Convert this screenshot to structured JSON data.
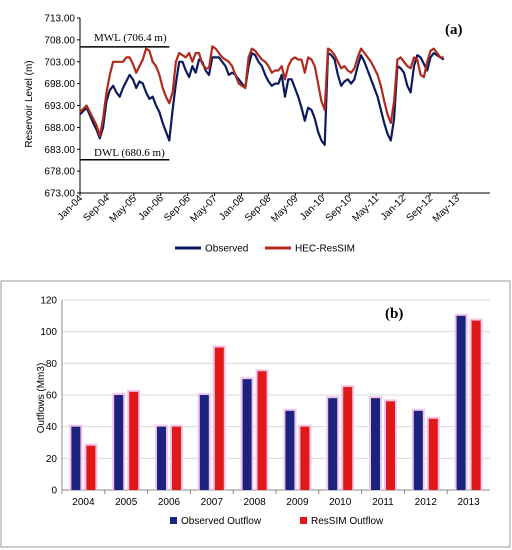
{
  "chart_data": [
    {
      "type": "line",
      "panel_label": "(a)",
      "ylabel": "Reservoir Level (m)",
      "ylim": [
        673,
        713
      ],
      "yticks": [
        "673.00",
        "678.00",
        "683.00",
        "688.00",
        "693.00",
        "698.00",
        "703.00",
        "708.00",
        "713.00"
      ],
      "xticks": [
        "Jan-04",
        "Sep-04",
        "May-05",
        "Jan-06",
        "Sep-06",
        "May-07",
        "Jan-08",
        "Sep-08",
        "May-09",
        "Jan-10",
        "Sep-10",
        "May-11",
        "Jan-12",
        "Sep-12",
        "May-13"
      ],
      "xlim": [
        0,
        124
      ],
      "annotations": [
        {
          "text": "MWL (706.4 m)",
          "x_from": 0,
          "x_to": 24,
          "y": 706.4
        },
        {
          "text": "DWL (680.6 m)",
          "x_from": 0,
          "x_to": 24,
          "y": 680.6
        }
      ],
      "legend_position": "bottom-center",
      "series": [
        {
          "name": "Observed",
          "color": "#0d1a5e",
          "points": [
            [
              0,
              691
            ],
            [
              2,
              692.5
            ],
            [
              4,
              689
            ],
            [
              5,
              687.5
            ],
            [
              6,
              685.5
            ],
            [
              7,
              688
            ],
            [
              8,
              694
            ],
            [
              9,
              696.5
            ],
            [
              10,
              697.5
            ],
            [
              11,
              696
            ],
            [
              12,
              695
            ],
            [
              13,
              697
            ],
            [
              14,
              698.5
            ],
            [
              15,
              700
            ],
            [
              16,
              699
            ],
            [
              17,
              697
            ],
            [
              18,
              698.5
            ],
            [
              19,
              698
            ],
            [
              20,
              696
            ],
            [
              21,
              694.5
            ],
            [
              22,
              695
            ],
            [
              23,
              693
            ],
            [
              24,
              691.5
            ],
            [
              25,
              689
            ],
            [
              26,
              687
            ],
            [
              27,
              685
            ],
            [
              28,
              692
            ],
            [
              29,
              698
            ],
            [
              30,
              703
            ],
            [
              31,
              703
            ],
            [
              32,
              701
            ],
            [
              33,
              699.5
            ],
            [
              34,
              702
            ],
            [
              35,
              700.5
            ],
            [
              36,
              703.5
            ],
            [
              37,
              703
            ],
            [
              38,
              701
            ],
            [
              39,
              700
            ],
            [
              40,
              704
            ],
            [
              41,
              704
            ],
            [
              42,
              704
            ],
            [
              43,
              703
            ],
            [
              44,
              702
            ],
            [
              45,
              700
            ],
            [
              46,
              700.5
            ],
            [
              47,
              700
            ],
            [
              48,
              699
            ],
            [
              49,
              698
            ],
            [
              50,
              697
            ],
            [
              51,
              702
            ],
            [
              52,
              705
            ],
            [
              53,
              704.5
            ],
            [
              54,
              703
            ],
            [
              55,
              702
            ],
            [
              56,
              700
            ],
            [
              57,
              698.5
            ],
            [
              58,
              697.5
            ],
            [
              59,
              698
            ],
            [
              60,
              698
            ],
            [
              61,
              700
            ],
            [
              62,
              695
            ],
            [
              63,
              699
            ],
            [
              64,
              699
            ],
            [
              65,
              697
            ],
            [
              66,
              695
            ],
            [
              67,
              692.5
            ],
            [
              68,
              689.5
            ],
            [
              69,
              692.5
            ],
            [
              70,
              692
            ],
            [
              71,
              690
            ],
            [
              72,
              687
            ],
            [
              73,
              685
            ],
            [
              74,
              684
            ],
            [
              75,
              705
            ],
            [
              76,
              704.5
            ],
            [
              77,
              703.5
            ],
            [
              78,
              700
            ],
            [
              79,
              697.5
            ],
            [
              80,
              698.5
            ],
            [
              81,
              699
            ],
            [
              82,
              698
            ],
            [
              83,
              699
            ],
            [
              84,
              702
            ],
            [
              85,
              704.5
            ],
            [
              86,
              703
            ],
            [
              87,
              701
            ],
            [
              88,
              699
            ],
            [
              89,
              697
            ],
            [
              90,
              695
            ],
            [
              91,
              692
            ],
            [
              92,
              689
            ],
            [
              93,
              686.5
            ],
            [
              94,
              685
            ],
            [
              95,
              690
            ],
            [
              96,
              702
            ],
            [
              97,
              701.5
            ],
            [
              98,
              700.5
            ],
            [
              99,
              697.5
            ],
            [
              100,
              696
            ],
            [
              101,
              702
            ],
            [
              102,
              704.5
            ],
            [
              103,
              704
            ],
            [
              104,
              702.5
            ],
            [
              105,
              701
            ],
            [
              106,
              704
            ],
            [
              107,
              705
            ],
            [
              108,
              704.5
            ],
            [
              109,
              704
            ],
            [
              110,
              703.5
            ]
          ]
        },
        {
          "name": "HEC-ResSIM",
          "color": "#b02a1e",
          "points": [
            [
              0,
              691.5
            ],
            [
              2,
              693
            ],
            [
              4,
              690
            ],
            [
              5,
              688.5
            ],
            [
              6,
              686
            ],
            [
              7,
              690
            ],
            [
              8,
              696
            ],
            [
              9,
              700
            ],
            [
              10,
              703
            ],
            [
              11,
              703
            ],
            [
              12,
              703
            ],
            [
              13,
              703
            ],
            [
              14,
              704
            ],
            [
              15,
              704
            ],
            [
              16,
              702.5
            ],
            [
              17,
              700.5
            ],
            [
              18,
              702
            ],
            [
              19,
              703.5
            ],
            [
              20,
              706
            ],
            [
              21,
              705.5
            ],
            [
              22,
              703
            ],
            [
              23,
              702
            ],
            [
              24,
              700
            ],
            [
              25,
              697
            ],
            [
              26,
              695
            ],
            [
              27,
              693.5
            ],
            [
              28,
              696
            ],
            [
              29,
              703
            ],
            [
              30,
              705
            ],
            [
              31,
              704.5
            ],
            [
              32,
              704
            ],
            [
              33,
              705
            ],
            [
              34,
              703
            ],
            [
              35,
              705
            ],
            [
              36,
              705
            ],
            [
              37,
              702.5
            ],
            [
              38,
              701.5
            ],
            [
              39,
              701.5
            ],
            [
              40,
              706.5
            ],
            [
              41,
              706
            ],
            [
              42,
              705
            ],
            [
              43,
              704
            ],
            [
              44,
              703.5
            ],
            [
              45,
              703
            ],
            [
              46,
              702
            ],
            [
              47,
              700
            ],
            [
              48,
              698
            ],
            [
              49,
              697.5
            ],
            [
              50,
              697
            ],
            [
              51,
              704
            ],
            [
              52,
              706
            ],
            [
              53,
              705.5
            ],
            [
              54,
              704.5
            ],
            [
              55,
              703.5
            ],
            [
              56,
              703
            ],
            [
              57,
              702
            ],
            [
              58,
              700.5
            ],
            [
              59,
              701
            ],
            [
              60,
              701
            ],
            [
              61,
              702
            ],
            [
              62,
              699
            ],
            [
              63,
              702
            ],
            [
              64,
              703.5
            ],
            [
              65,
              704
            ],
            [
              66,
              703.5
            ],
            [
              67,
              703.5
            ],
            [
              68,
              700.5
            ],
            [
              69,
              704
            ],
            [
              70,
              703.5
            ],
            [
              71,
              702
            ],
            [
              72,
              698
            ],
            [
              73,
              694
            ],
            [
              74,
              692
            ],
            [
              75,
              706
            ],
            [
              76,
              705.5
            ],
            [
              77,
              704.5
            ],
            [
              78,
              703
            ],
            [
              79,
              701.5
            ],
            [
              80,
              702
            ],
            [
              81,
              701
            ],
            [
              82,
              700.5
            ],
            [
              83,
              701.5
            ],
            [
              84,
              704
            ],
            [
              85,
              706
            ],
            [
              86,
              705
            ],
            [
              87,
              704
            ],
            [
              88,
              703
            ],
            [
              89,
              701.5
            ],
            [
              90,
              700
            ],
            [
              91,
              697.5
            ],
            [
              92,
              694
            ],
            [
              93,
              691
            ],
            [
              94,
              689
            ],
            [
              95,
              694
            ],
            [
              96,
              703.5
            ],
            [
              97,
              704
            ],
            [
              98,
              703
            ],
            [
              99,
              702
            ],
            [
              100,
              701.5
            ],
            [
              101,
              704
            ],
            [
              102,
              703.5
            ],
            [
              103,
              700
            ],
            [
              104,
              699.5
            ],
            [
              105,
              703
            ],
            [
              106,
              705.5
            ],
            [
              107,
              706
            ],
            [
              108,
              705
            ],
            [
              109,
              704
            ],
            [
              110,
              704
            ]
          ]
        }
      ]
    },
    {
      "type": "bar",
      "panel_label": "(b)",
      "ylabel": "Outflows (Mm3)",
      "ylim": [
        0,
        120
      ],
      "yticks": [
        "0",
        "20",
        "40",
        "60",
        "80",
        "100",
        "120"
      ],
      "categories": [
        "2004",
        "2005",
        "2006",
        "2007",
        "2008",
        "2009",
        "2010",
        "2011",
        "2012",
        "2013"
      ],
      "legend_position": "bottom-center",
      "series": [
        {
          "name": "Observed Outflow",
          "color": "#1a237e",
          "values": [
            40,
            60,
            40,
            60,
            70,
            50,
            58,
            58,
            50,
            110
          ]
        },
        {
          "name": "ResSIM Outflow",
          "color": "#e01818",
          "values": [
            28,
            62,
            40,
            90,
            75,
            40,
            65,
            56,
            45,
            107
          ]
        }
      ]
    }
  ]
}
